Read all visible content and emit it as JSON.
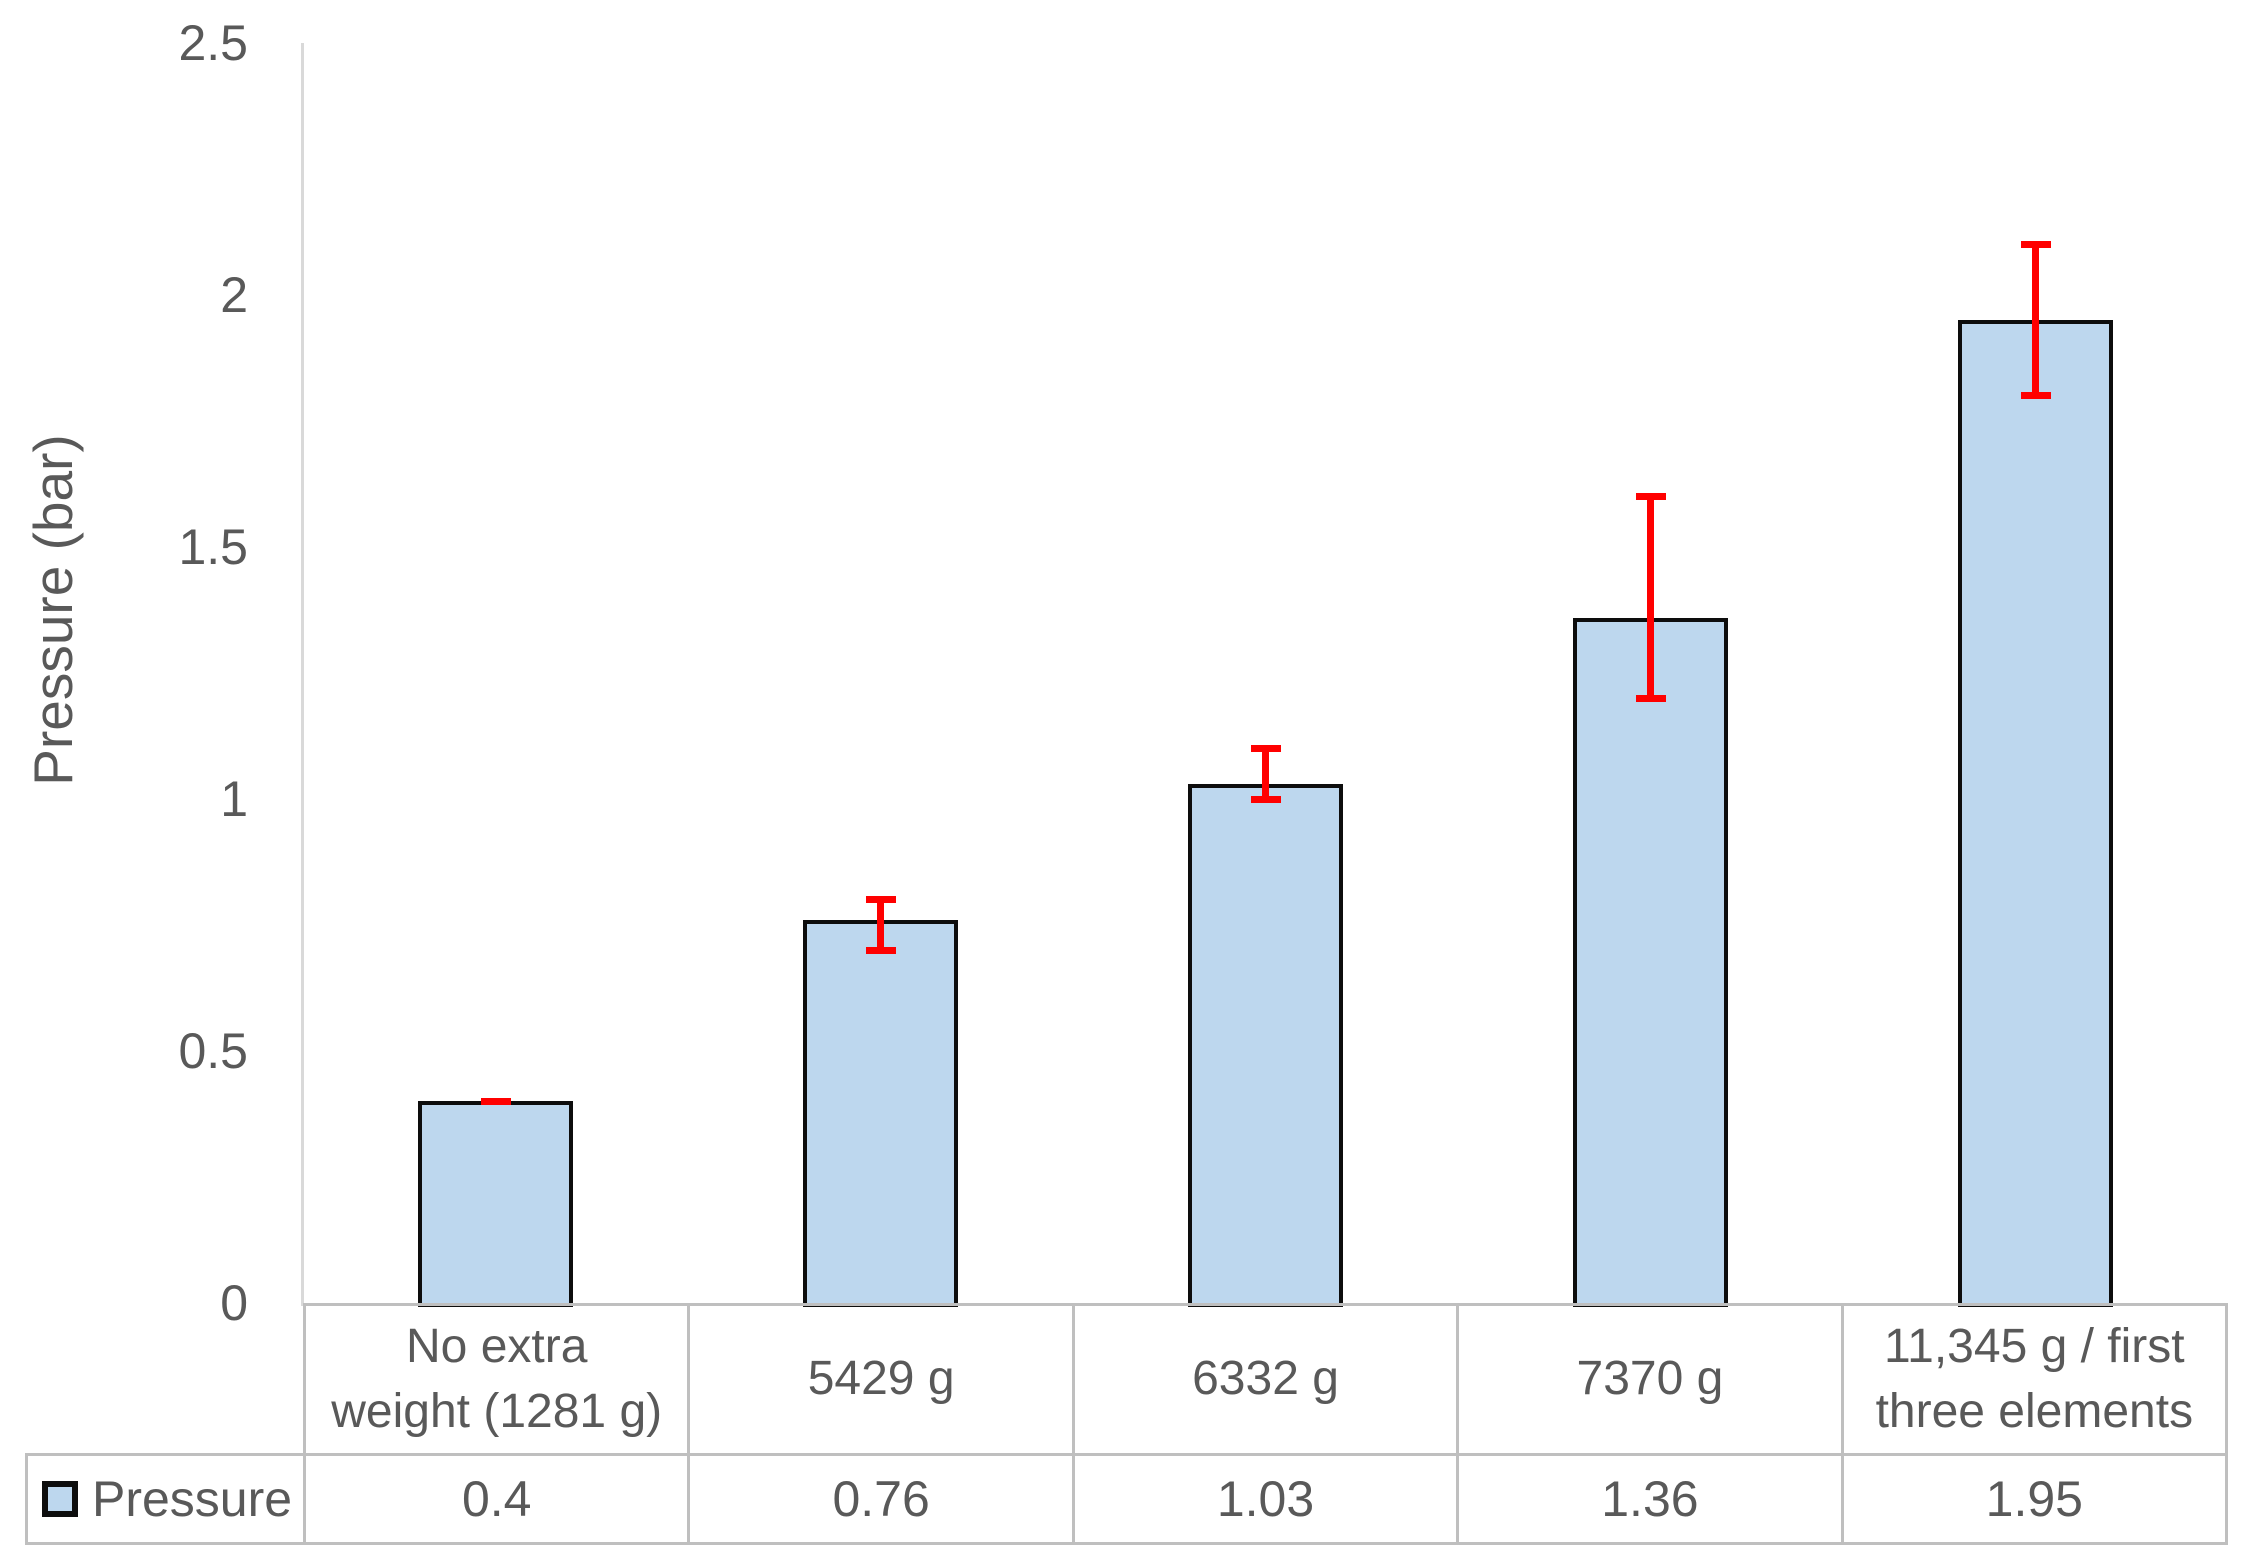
{
  "chart_data": {
    "type": "bar",
    "title": "",
    "xlabel": "",
    "ylabel": "Pressure (bar)",
    "categories": [
      "No extra weight (1281 g)",
      "5429 g",
      "6332 g",
      "7370 g",
      "11,345 g / first three elements"
    ],
    "category_lines": [
      [
        "No extra",
        "weight (1281 g)"
      ],
      [
        "5429 g"
      ],
      [
        "6332 g"
      ],
      [
        "7370 g"
      ],
      [
        "11,345 g / first",
        "three elements"
      ]
    ],
    "series": [
      {
        "name": "Pressure",
        "values": [
          0.4,
          0.76,
          1.03,
          1.36,
          1.95
        ]
      }
    ],
    "table_values": [
      "0.4",
      "0.76",
      "1.03",
      "1.36",
      "1.95"
    ],
    "error_bars": {
      "low": [
        0.4,
        0.7,
        1.0,
        1.2,
        1.8
      ],
      "high": [
        0.4,
        0.8,
        1.1,
        1.6,
        2.1
      ]
    },
    "ylim": [
      0,
      2.5
    ],
    "yticks": [
      0,
      0.5,
      1,
      1.5,
      2,
      2.5
    ],
    "ytick_labels": [
      "0",
      "0.5",
      "1",
      "1.5",
      "2",
      "2.5"
    ],
    "grid": false,
    "data_table": true,
    "legend_position": "data-table-left",
    "colors": {
      "bar_fill": "#BDD7EE",
      "bar_border": "#0D0D0D",
      "error_bar": "#FF0000",
      "axis_line": "#D9D9D9",
      "table_border": "#BFBFBF",
      "text": "#595959"
    }
  }
}
